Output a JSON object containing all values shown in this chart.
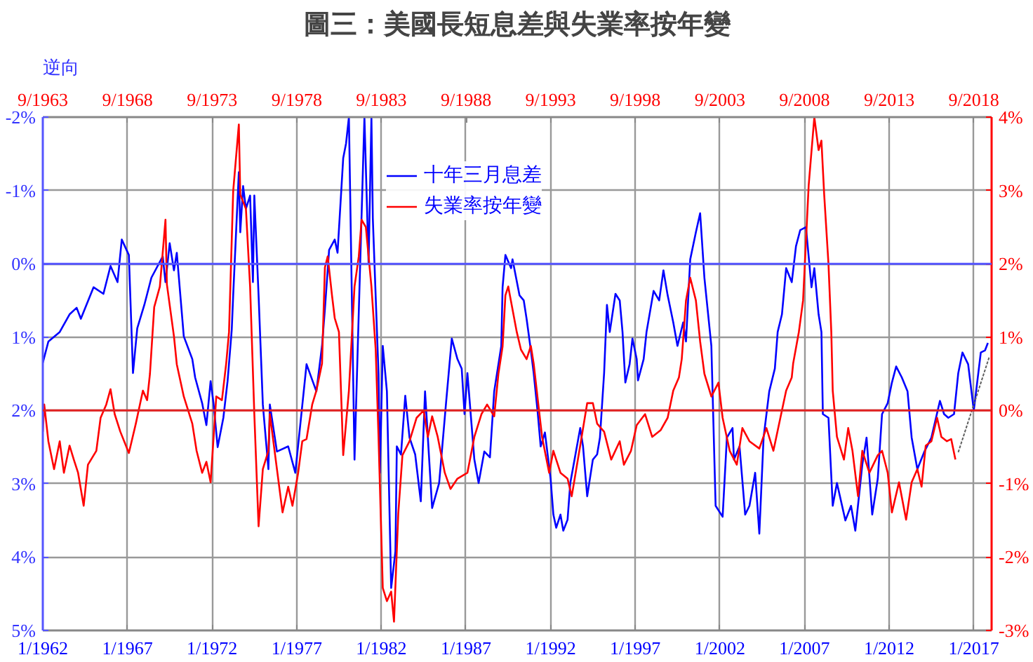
{
  "chart_data": {
    "type": "line",
    "title": "圖三：美國長短息差與失業率按年變",
    "ylabel": "逆向",
    "xlim": [
      "1962-01",
      "2018-01-20"
    ],
    "x2lim": [
      "1963-09",
      "2019-09-20"
    ],
    "xticks": [
      {
        "value": "1962-01",
        "label": "1/1962"
      },
      {
        "value": "1967-01",
        "label": "1/1967"
      },
      {
        "value": "1972-01",
        "label": "1/1972"
      },
      {
        "value": "1977-01",
        "label": "1/1977"
      },
      {
        "value": "1982-01",
        "label": "1/1982"
      },
      {
        "value": "1987-01",
        "label": "1/1987"
      },
      {
        "value": "1992-01",
        "label": "1/1992"
      },
      {
        "value": "1997-01",
        "label": "1/1997"
      },
      {
        "value": "2002-01",
        "label": "1/2002"
      },
      {
        "value": "2007-01",
        "label": "1/2007"
      },
      {
        "value": "2012-01",
        "label": "1/2012"
      },
      {
        "value": "2017-01",
        "label": "1/2017"
      }
    ],
    "x2ticks": [
      {
        "value": "1963-09",
        "label": "9/1963"
      },
      {
        "value": "1968-09",
        "label": "9/1968"
      },
      {
        "value": "1973-09",
        "label": "9/1973"
      },
      {
        "value": "1978-09",
        "label": "9/1978"
      },
      {
        "value": "1983-09",
        "label": "9/1983"
      },
      {
        "value": "1988-09",
        "label": "9/1988"
      },
      {
        "value": "1993-09",
        "label": "9/1993"
      },
      {
        "value": "1998-09",
        "label": "9/1998"
      },
      {
        "value": "2003-09",
        "label": "9/2003"
      },
      {
        "value": "2008-09",
        "label": "9/2008"
      },
      {
        "value": "2013-09",
        "label": "9/2013"
      },
      {
        "value": "2018-09",
        "label": "9/2018"
      }
    ],
    "ylim": [
      5,
      -2
    ],
    "yticks": [
      {
        "value": -2,
        "label": "-2%"
      },
      {
        "value": -1,
        "label": "-1%"
      },
      {
        "value": 0,
        "label": "0%"
      },
      {
        "value": 1,
        "label": "1%"
      },
      {
        "value": 2,
        "label": "2%"
      },
      {
        "value": 3,
        "label": "3%"
      },
      {
        "value": 4,
        "label": "4%"
      },
      {
        "value": 5,
        "label": "5%"
      }
    ],
    "y2lim": [
      -3,
      4
    ],
    "y2ticks": [
      {
        "value": 4,
        "label": "4%"
      },
      {
        "value": 3,
        "label": "3%"
      },
      {
        "value": 2,
        "label": "2%"
      },
      {
        "value": 1,
        "label": "1%"
      },
      {
        "value": 0,
        "label": "0%"
      },
      {
        "value": -1,
        "label": "-1%"
      },
      {
        "value": -2,
        "label": "-2%"
      },
      {
        "value": -3,
        "label": "-3%"
      }
    ],
    "grid": true,
    "legend": "top",
    "line_style": "solid",
    "ref_lines": [
      {
        "axis": "y",
        "value": 0,
        "color": "#5555ff"
      },
      {
        "axis": "y2",
        "value": 0,
        "color": "#e02020"
      }
    ],
    "series": [
      {
        "name": "十年三月息差",
        "color": "#0000ff",
        "x": [
          "1962-01",
          "1962-05",
          "1963-01",
          "1963-08",
          "1964-01",
          "1964-04",
          "1965-01",
          "1965-08",
          "1966-01",
          "1966-06",
          "1966-09",
          "1967-02",
          "1967-05",
          "1967-08",
          "1968-01",
          "1968-06",
          "1969-02",
          "1969-04",
          "1969-07",
          "1969-10",
          "1969-12",
          "1970-05",
          "1970-11",
          "1971-01",
          "1971-06",
          "1971-09",
          "1971-12",
          "1972-02",
          "1972-05",
          "1972-09",
          "1972-12",
          "1973-03",
          "1973-04",
          "1973-08",
          "1973-09",
          "1973-11",
          "1974-01",
          "1974-04",
          "1974-06",
          "1974-07",
          "1974-10",
          "1975-01",
          "1975-05",
          "1975-06",
          "1975-11",
          "1976-07",
          "1976-12",
          "1977-08",
          "1978-03",
          "1978-07",
          "1978-09",
          "1978-12",
          "1979-04",
          "1979-06",
          "1979-10",
          "1979-12",
          "1980-02",
          "1980-06",
          "1981-01",
          "1981-04",
          "1981-06",
          "1981-07",
          "1981-11",
          "1981-12",
          "1982-02",
          "1982-05",
          "1982-08",
          "1982-11",
          "1982-12",
          "1983-03",
          "1983-06",
          "1983-09",
          "1984-01",
          "1984-05",
          "1984-08",
          "1985-01",
          "1985-06",
          "1985-11",
          "1986-03",
          "1986-07",
          "1986-10",
          "1986-12",
          "1987-02",
          "1987-07",
          "1987-10",
          "1988-02",
          "1988-06",
          "1988-09",
          "1989-02",
          "1989-03",
          "1989-05",
          "1989-09",
          "1989-10",
          "1990-03",
          "1990-06",
          "1990-08",
          "1990-11",
          "1991-01",
          "1991-04",
          "1991-06",
          "1991-09",
          "1992-01",
          "1992-03",
          "1992-05",
          "1992-08",
          "1992-10",
          "1993-01",
          "1993-03",
          "1993-06",
          "1993-10",
          "1993-12",
          "1994-03",
          "1994-07",
          "1994-10",
          "1994-12",
          "1995-03",
          "1995-05",
          "1995-07",
          "1995-11",
          "1996-02",
          "1996-04",
          "1996-06",
          "1996-09",
          "1996-11",
          "1997-02",
          "1997-03",
          "1997-07",
          "1997-09",
          "1998-02",
          "1998-06",
          "1998-09",
          "1998-12",
          "1999-04",
          "1999-07",
          "1999-11",
          "2000-01",
          "2000-04",
          "2000-08",
          "2000-11",
          "2001-02",
          "2001-07",
          "2001-10",
          "2002-03",
          "2002-06",
          "2002-10",
          "2002-11",
          "2003-03",
          "2003-07",
          "2003-10",
          "2004-02",
          "2004-05",
          "2004-08",
          "2004-12",
          "2005-04",
          "2005-06",
          "2005-09",
          "2005-12",
          "2006-04",
          "2006-07",
          "2006-10",
          "2007-02",
          "2007-06",
          "2007-08",
          "2007-11",
          "2008-01",
          "2008-02",
          "2008-06",
          "2008-09",
          "2008-12",
          "2009-06",
          "2009-10",
          "2010-01",
          "2010-06",
          "2010-09",
          "2011-01",
          "2011-05",
          "2011-08",
          "2011-12",
          "2012-03",
          "2012-06",
          "2012-10",
          "2013-02",
          "2013-05",
          "2013-09",
          "2014-02",
          "2014-07",
          "2015-01",
          "2015-04",
          "2015-07",
          "2015-11",
          "2016-02",
          "2016-05",
          "2016-09",
          "2017-01",
          "2017-06",
          "2017-09",
          "2017-11"
        ],
        "values": [
          1.35,
          1.06,
          0.93,
          0.69,
          0.6,
          0.75,
          0.32,
          0.41,
          0.03,
          0.25,
          -0.33,
          -0.12,
          1.49,
          0.88,
          0.56,
          0.19,
          -0.1,
          0.25,
          -0.28,
          0.09,
          -0.15,
          0.99,
          1.3,
          1.55,
          1.9,
          2.2,
          1.6,
          1.9,
          2.5,
          2.1,
          1.6,
          0.9,
          0.43,
          -1.25,
          -0.43,
          -1.06,
          -0.75,
          -0.93,
          0.25,
          -0.93,
          0.43,
          1.92,
          2.8,
          1.92,
          2.56,
          2.49,
          2.85,
          1.37,
          1.74,
          1.12,
          0.62,
          -0.19,
          -0.33,
          -0.15,
          -1.44,
          -1.64,
          -2.0,
          2.67,
          -2.0,
          0.0,
          -2.0,
          -0.62,
          1.5,
          2.85,
          1.12,
          1.74,
          4.42,
          3.92,
          2.49,
          2.6,
          1.8,
          2.37,
          2.6,
          3.24,
          1.74,
          3.33,
          2.99,
          1.87,
          1.02,
          1.3,
          1.43,
          2.05,
          1.49,
          2.67,
          2.99,
          2.56,
          2.64,
          1.74,
          1.12,
          0.32,
          -0.12,
          0.06,
          -0.06,
          0.43,
          0.5,
          0.75,
          1.18,
          1.49,
          2.05,
          2.49,
          2.3,
          2.93,
          3.42,
          3.6,
          3.42,
          3.64,
          3.49,
          2.99,
          2.67,
          2.24,
          2.49,
          3.17,
          2.67,
          2.6,
          2.37,
          1.49,
          0.56,
          0.93,
          0.41,
          0.5,
          0.93,
          1.62,
          1.37,
          1.02,
          1.3,
          1.59,
          1.3,
          0.93,
          0.37,
          0.5,
          0.09,
          0.43,
          0.8,
          1.12,
          0.8,
          1.06,
          -0.06,
          -0.43,
          -0.69,
          0.19,
          1.12,
          3.3,
          3.45,
          2.37,
          2.24,
          2.67,
          2.49,
          3.42,
          3.3,
          2.85,
          3.68,
          2.37,
          1.74,
          1.43,
          0.93,
          0.69,
          0.06,
          0.25,
          -0.24,
          -0.46,
          -0.5,
          0.32,
          0.06,
          0.69,
          0.93,
          2.05,
          2.1,
          3.3,
          2.99,
          3.5,
          3.3,
          3.64,
          2.74,
          2.37,
          3.42,
          2.93,
          2.05,
          1.9,
          1.62,
          1.4,
          1.55,
          1.74,
          2.37,
          2.8,
          2.56,
          2.37,
          1.87,
          2.05,
          2.1,
          2.05,
          1.49,
          1.21,
          1.37,
          2.0,
          1.21,
          1.18,
          1.08
        ]
      },
      {
        "name": "失業率按年變",
        "color": "#ff0000",
        "axis": "y2",
        "x": [
          "1962-01",
          "1962-02",
          "1962-05",
          "1962-09",
          "1963-01",
          "1963-04",
          "1963-08",
          "1963-11",
          "1964-02",
          "1964-06",
          "1964-09",
          "1965-03",
          "1965-06",
          "1965-10",
          "1966-01",
          "1966-04",
          "1966-08",
          "1967-02",
          "1967-07",
          "1967-12",
          "1968-03",
          "1968-05",
          "1968-08",
          "1968-12",
          "1969-04",
          "1969-05",
          "1969-10",
          "1969-12",
          "1970-05",
          "1970-11",
          "1971-02",
          "1971-06",
          "1971-09",
          "1971-12",
          "1972-04",
          "1972-08",
          "1972-11",
          "1973-01",
          "1973-04",
          "1973-08",
          "1973-09",
          "1974-01",
          "1974-04",
          "1974-07",
          "1974-10",
          "1975-01",
          "1975-05",
          "1975-06",
          "1975-11",
          "1976-03",
          "1976-07",
          "1976-10",
          "1977-02",
          "1977-05",
          "1977-08",
          "1977-12",
          "1978-03",
          "1978-07",
          "1978-09",
          "1978-11",
          "1979-02",
          "1979-04",
          "1979-07",
          "1979-09",
          "1979-10",
          "1980-02",
          "1980-06",
          "1980-09",
          "1980-11",
          "1981-02",
          "1981-06",
          "1981-09",
          "1981-11",
          "1982-02",
          "1982-05",
          "1982-08",
          "1982-10",
          "1983-01",
          "1983-04",
          "1983-09",
          "1984-02",
          "1984-07",
          "1984-10",
          "1985-01",
          "1985-05",
          "1985-10",
          "1986-02",
          "1986-07",
          "1987-02",
          "1987-07",
          "1987-12",
          "1988-04",
          "1988-09",
          "1988-12",
          "1989-03",
          "1989-05",
          "1989-07",
          "1990-01",
          "1990-04",
          "1990-08",
          "1990-11",
          "1991-01",
          "1991-04",
          "1991-07",
          "1991-12",
          "1992-03",
          "1992-08",
          "1993-01",
          "1993-04",
          "1993-10",
          "1994-03",
          "1994-07",
          "1994-10",
          "1995-03",
          "1995-08",
          "1996-02",
          "1996-05",
          "1996-10",
          "1997-02",
          "1997-08",
          "1998-01",
          "1998-07",
          "1998-12",
          "1999-04",
          "1999-08",
          "1999-10",
          "2000-01",
          "2000-04",
          "2000-08",
          "2000-11",
          "2001-02",
          "2001-07",
          "2001-12",
          "2002-03",
          "2002-08",
          "2003-01",
          "2003-05",
          "2003-10",
          "2004-05",
          "2004-10",
          "2005-03",
          "2005-09",
          "2005-12",
          "2006-04",
          "2006-05",
          "2006-09",
          "2006-12",
          "2007-04",
          "2007-08",
          "2007-11",
          "2008-01",
          "2008-03",
          "2008-06",
          "2008-08",
          "2008-09",
          "2008-12",
          "2009-05",
          "2009-08",
          "2009-11",
          "2010-03",
          "2010-06",
          "2010-11",
          "2011-05",
          "2011-08",
          "2011-12",
          "2012-03",
          "2012-08",
          "2013-01",
          "2013-05",
          "2013-09",
          "2013-12",
          "2014-03",
          "2014-07",
          "2014-11",
          "2015-02",
          "2015-06",
          "2015-09",
          "2015-12"
        ],
        "values": [
          -0.29,
          0.08,
          -0.42,
          -0.8,
          -0.42,
          -0.85,
          -0.48,
          -0.67,
          -0.85,
          -1.3,
          -0.74,
          -0.55,
          -0.1,
          0.08,
          0.29,
          -0.05,
          -0.29,
          -0.58,
          -0.18,
          0.27,
          0.14,
          0.5,
          1.41,
          1.69,
          2.6,
          1.72,
          1.01,
          0.63,
          0.19,
          -0.18,
          -0.55,
          -0.85,
          -0.7,
          -0.98,
          0.19,
          0.14,
          0.64,
          1.07,
          2.99,
          3.9,
          2.94,
          2.75,
          1.69,
          -0.05,
          -1.58,
          -0.8,
          -0.55,
          -0.05,
          -0.8,
          -1.39,
          -1.04,
          -1.3,
          -0.85,
          -0.42,
          -0.39,
          0.08,
          0.27,
          0.64,
          1.95,
          2.1,
          1.57,
          1.26,
          1.07,
          -0.05,
          -0.61,
          0.27,
          1.69,
          2.1,
          2.6,
          2.5,
          1.69,
          0.83,
          -0.36,
          -2.42,
          -2.6,
          -2.47,
          -2.88,
          -1.41,
          -0.61,
          -0.42,
          -0.1,
          0.0,
          -0.36,
          -0.08,
          -0.36,
          -0.85,
          -1.07,
          -0.93,
          -0.85,
          -0.36,
          -0.05,
          0.08,
          -0.08,
          0.5,
          0.87,
          1.57,
          1.69,
          1.07,
          0.83,
          0.7,
          0.88,
          0.64,
          0.14,
          -0.36,
          -0.85,
          -0.55,
          -0.85,
          -0.93,
          -1.17,
          -0.48,
          0.1,
          0.1,
          -0.18,
          -0.29,
          -0.67,
          -0.42,
          -0.74,
          -0.55,
          -0.2,
          -0.05,
          -0.36,
          -0.27,
          -0.1,
          0.27,
          0.45,
          0.7,
          1.5,
          1.81,
          1.5,
          0.94,
          0.5,
          0.19,
          0.38,
          -0.1,
          -0.55,
          -0.74,
          -0.24,
          -0.42,
          -0.52,
          -0.24,
          -0.55,
          0.0,
          0.27,
          0.45,
          0.64,
          1.07,
          1.5,
          3.07,
          4.0,
          3.55,
          3.68,
          2.94,
          2.0,
          1.07,
          0.27,
          -0.36,
          -0.67,
          -0.24,
          -0.55,
          -1.17,
          -0.55,
          -0.85,
          -0.61,
          -0.55,
          -0.85,
          -1.39,
          -0.98,
          -1.49,
          -0.98,
          -0.8,
          -1.04,
          -0.48,
          -0.42,
          -0.1,
          -0.36,
          -0.42,
          -0.39,
          -0.67
        ]
      },
      {
        "color": "#606060",
        "line_style": "dotted",
        "x": [
          "2016-02",
          "2017-12"
        ],
        "values": [
          2.57,
          1.27
        ]
      }
    ]
  }
}
